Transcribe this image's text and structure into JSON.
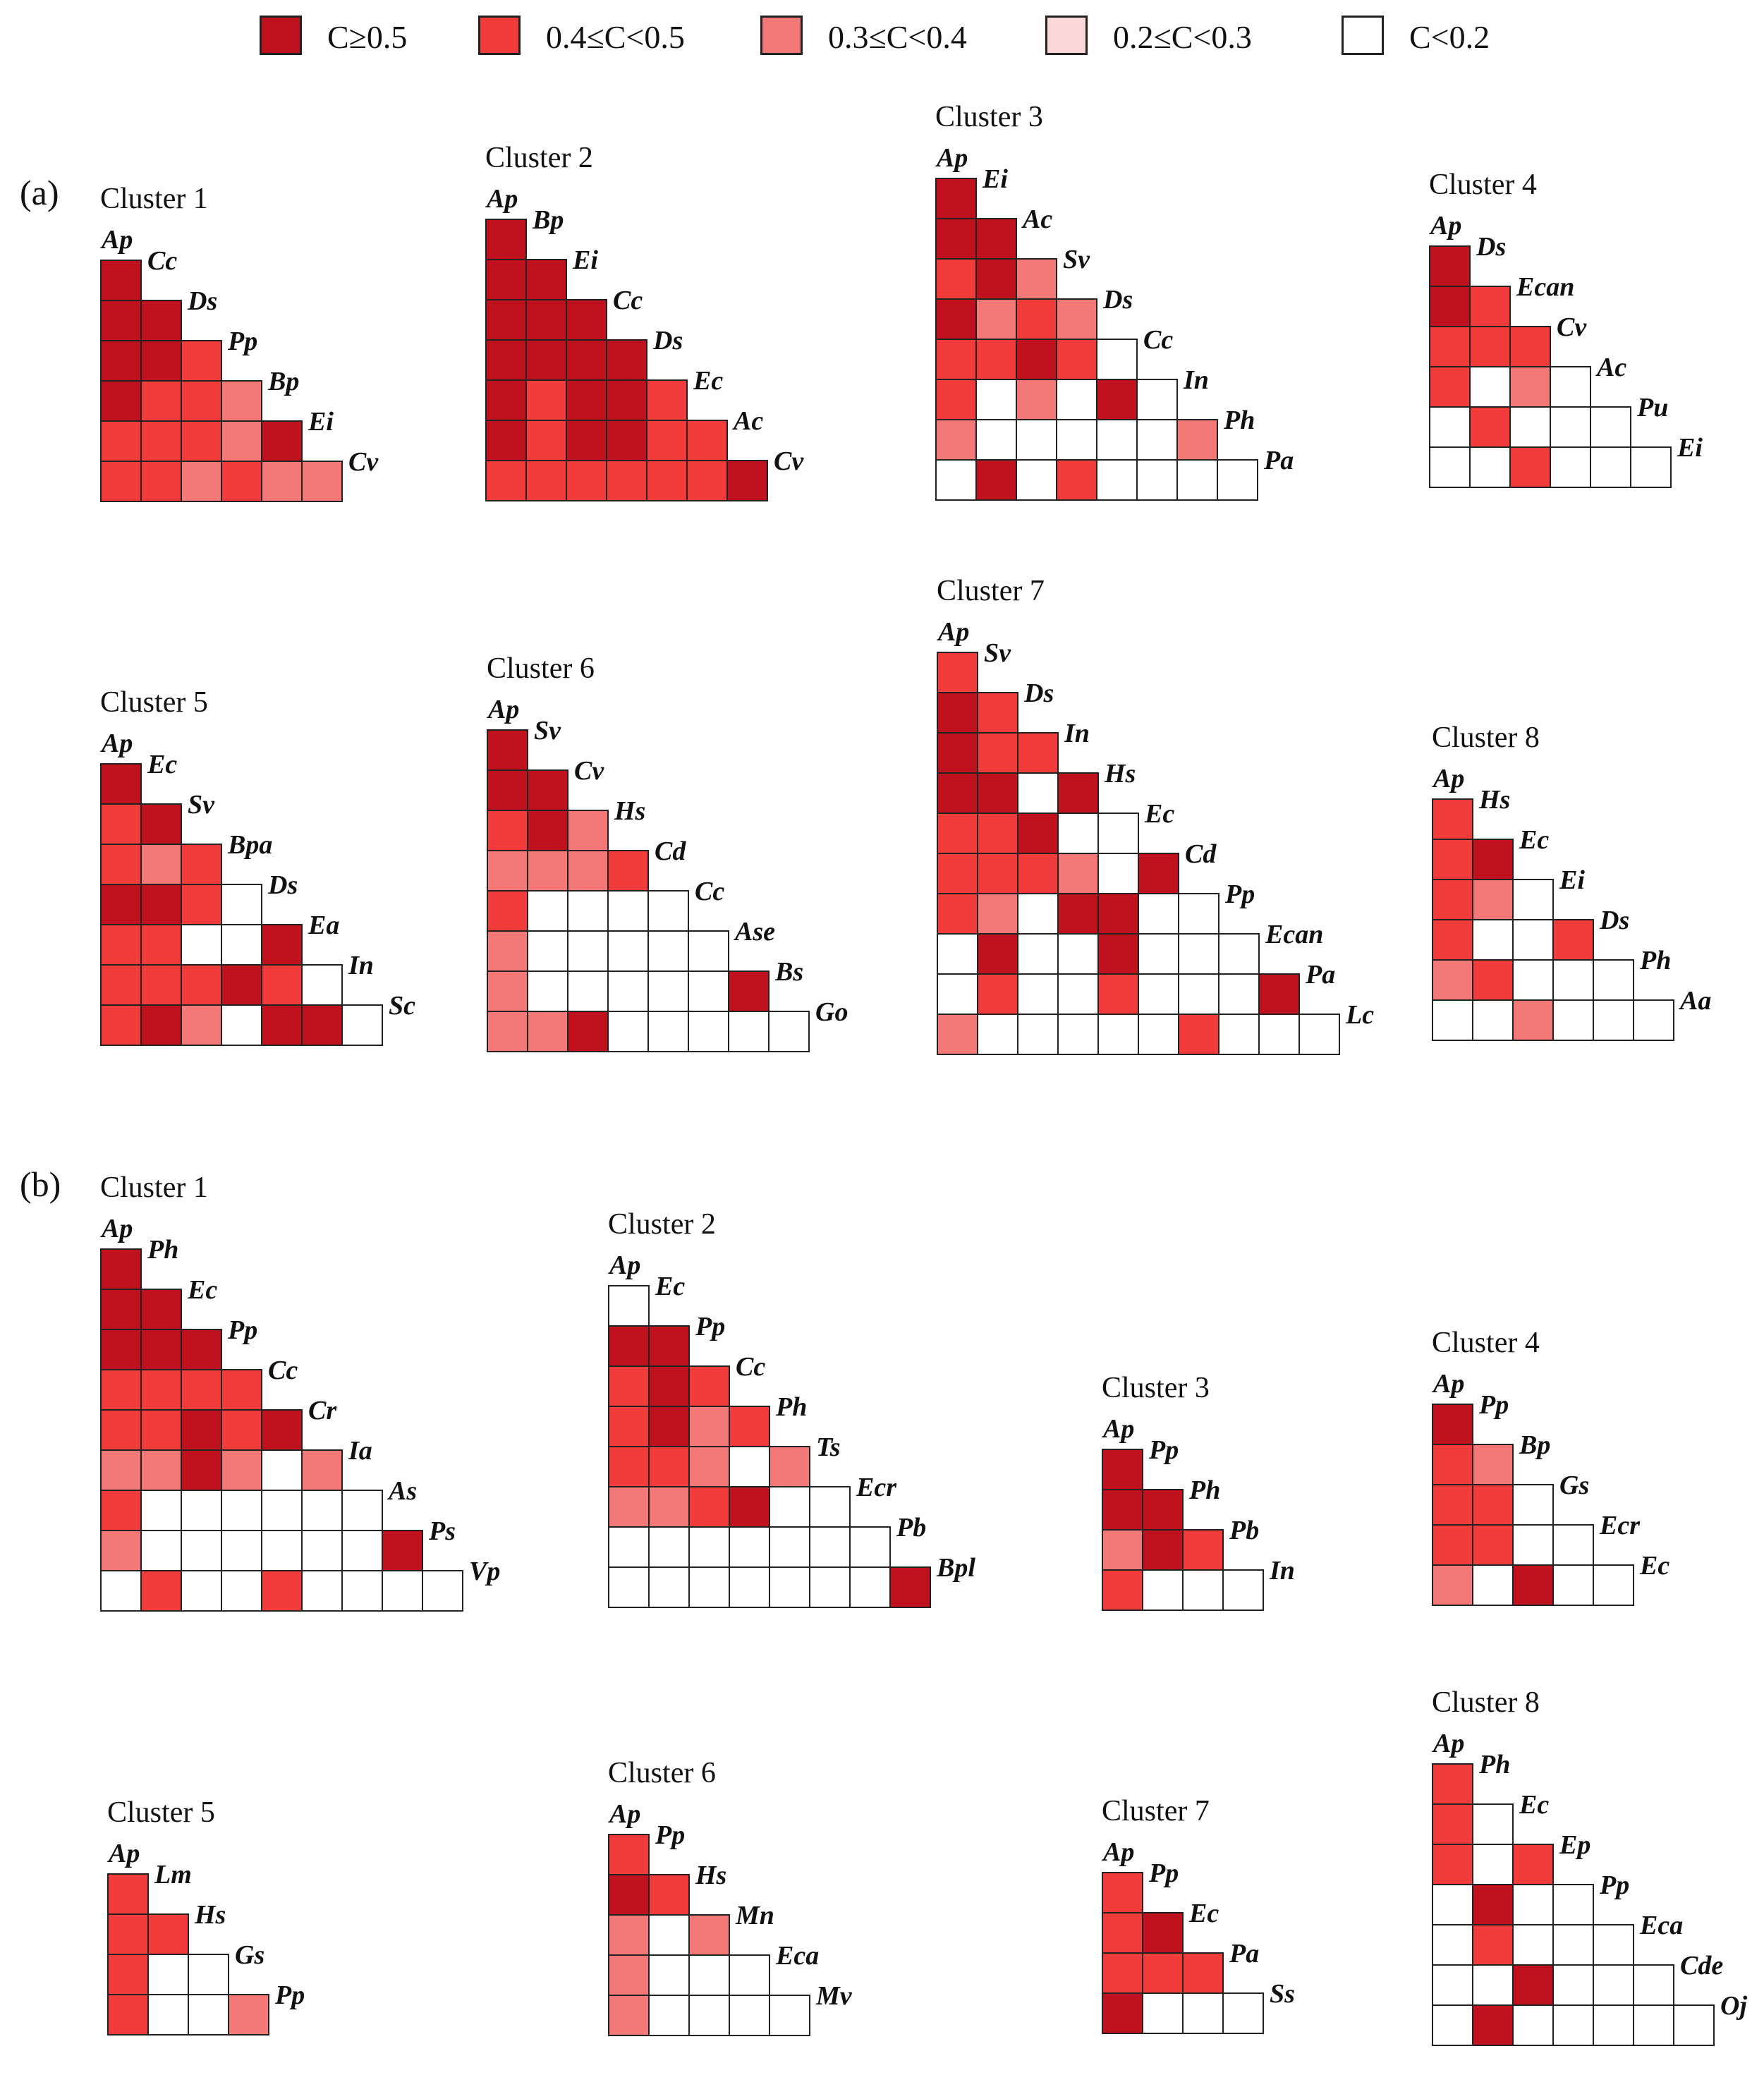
{
  "legend": {
    "items": [
      {
        "label": "C≥0.5",
        "color": "#c0111f"
      },
      {
        "label": "0.4≤C<0.5",
        "color": "#f23b3b"
      },
      {
        "label": "0.3≤C<0.4",
        "color": "#f57878"
      },
      {
        "label": "0.2≤C<0.3",
        "color": "#fcd7d7"
      },
      {
        "label": "C<0.2",
        "color": "#ffffff"
      }
    ]
  },
  "panels": [
    {
      "label": "(a)"
    },
    {
      "label": "(b)"
    }
  ],
  "chart_data": {
    "type": "heatmap",
    "description_levels": [
      "C≥0.5",
      "0.4≤C<0.5",
      "0.3≤C<0.4",
      "0.2≤C<0.3",
      "C<0.2"
    ],
    "level_codes": {
      "0": "C<0.2",
      "1": "0.2≤C<0.3",
      "2": "0.3≤C<0.4",
      "3": "0.4≤C<0.5",
      "4": "C≥0.5"
    },
    "clusters": [
      {
        "panel": "(a)",
        "title": "Cluster 1",
        "species": [
          "Ap",
          "Cc",
          "Ds",
          "Pp",
          "Bp",
          "Ei",
          "Cv"
        ],
        "rows": [
          [
            4
          ],
          [
            4,
            4
          ],
          [
            4,
            4,
            3
          ],
          [
            4,
            3,
            3,
            2
          ],
          [
            3,
            3,
            3,
            2,
            4
          ],
          [
            3,
            3,
            2,
            3,
            2,
            2
          ]
        ]
      },
      {
        "panel": "(a)",
        "title": "Cluster 2",
        "species": [
          "Ap",
          "Bp",
          "Ei",
          "Cc",
          "Ds",
          "Ec",
          "Ac",
          "Cv"
        ],
        "rows": [
          [
            4
          ],
          [
            4,
            4
          ],
          [
            4,
            4,
            4
          ],
          [
            4,
            4,
            4,
            4
          ],
          [
            4,
            3,
            4,
            4,
            3
          ],
          [
            4,
            3,
            4,
            4,
            3,
            3
          ],
          [
            3,
            3,
            3,
            3,
            3,
            3,
            4
          ]
        ]
      },
      {
        "panel": "(a)",
        "title": "Cluster 3",
        "species": [
          "Ap",
          "Ei",
          "Ac",
          "Sv",
          "Ds",
          "Cc",
          "In",
          "Ph",
          "Pa"
        ],
        "rows": [
          [
            4
          ],
          [
            4,
            4
          ],
          [
            3,
            4,
            2
          ],
          [
            4,
            2,
            3,
            2
          ],
          [
            3,
            3,
            4,
            3,
            0
          ],
          [
            3,
            0,
            2,
            0,
            4,
            0
          ],
          [
            2,
            0,
            0,
            0,
            0,
            0,
            2
          ],
          [
            0,
            4,
            0,
            3,
            0,
            0,
            0,
            0
          ]
        ]
      },
      {
        "panel": "(a)",
        "title": "Cluster 4",
        "species": [
          "Ap",
          "Ds",
          "Ecan",
          "Cv",
          "Ac",
          "Pu",
          "Ei"
        ],
        "rows": [
          [
            4
          ],
          [
            4,
            3
          ],
          [
            3,
            3,
            3
          ],
          [
            3,
            0,
            2,
            0
          ],
          [
            0,
            3,
            0,
            0,
            0
          ],
          [
            0,
            0,
            3,
            0,
            0,
            0
          ]
        ]
      },
      {
        "panel": "(a)",
        "title": "Cluster 5",
        "species": [
          "Ap",
          "Ec",
          "Sv",
          "Bpa",
          "Ds",
          "Ea",
          "In",
          "Sc"
        ],
        "rows": [
          [
            4
          ],
          [
            3,
            4
          ],
          [
            3,
            2,
            3
          ],
          [
            4,
            4,
            3,
            0
          ],
          [
            3,
            3,
            0,
            0,
            4
          ],
          [
            3,
            3,
            3,
            4,
            3,
            0
          ],
          [
            3,
            4,
            2,
            0,
            4,
            4,
            0
          ]
        ]
      },
      {
        "panel": "(a)",
        "title": "Cluster 6",
        "species": [
          "Ap",
          "Sv",
          "Cv",
          "Hs",
          "Cd",
          "Cc",
          "Ase",
          "Bs",
          "Go"
        ],
        "rows": [
          [
            4
          ],
          [
            4,
            4
          ],
          [
            3,
            4,
            2
          ],
          [
            2,
            2,
            2,
            3
          ],
          [
            3,
            0,
            0,
            0,
            0
          ],
          [
            2,
            0,
            0,
            0,
            0,
            0
          ],
          [
            2,
            0,
            0,
            0,
            0,
            0,
            4
          ],
          [
            2,
            2,
            4,
            0,
            0,
            0,
            0,
            0
          ]
        ]
      },
      {
        "panel": "(a)",
        "title": "Cluster 7",
        "species": [
          "Ap",
          "Sv",
          "Ds",
          "In",
          "Hs",
          "Ec",
          "Cd",
          "Pp",
          "Ecan",
          "Pa",
          "Lc"
        ],
        "rows": [
          [
            3
          ],
          [
            4,
            3
          ],
          [
            4,
            3,
            3
          ],
          [
            4,
            4,
            0,
            4
          ],
          [
            3,
            3,
            4,
            0,
            0
          ],
          [
            3,
            3,
            3,
            2,
            0,
            4
          ],
          [
            3,
            2,
            0,
            4,
            4,
            0,
            0
          ],
          [
            0,
            4,
            0,
            0,
            4,
            0,
            0,
            0
          ],
          [
            0,
            3,
            0,
            0,
            3,
            0,
            0,
            0,
            4
          ],
          [
            2,
            0,
            0,
            0,
            0,
            0,
            3,
            0,
            0,
            0
          ]
        ]
      },
      {
        "panel": "(a)",
        "title": "Cluster 8",
        "species": [
          "Ap",
          "Hs",
          "Ec",
          "Ei",
          "Ds",
          "Ph",
          "Aa"
        ],
        "rows": [
          [
            3
          ],
          [
            3,
            4
          ],
          [
            3,
            2,
            0
          ],
          [
            3,
            0,
            0,
            3
          ],
          [
            2,
            3,
            0,
            0,
            0
          ],
          [
            0,
            0,
            2,
            0,
            0,
            0
          ]
        ]
      },
      {
        "panel": "(b)",
        "title": "Cluster 1",
        "species": [
          "Ap",
          "Ph",
          "Ec",
          "Pp",
          "Cc",
          "Cr",
          "Ia",
          "As",
          "Ps",
          "Vp"
        ],
        "rows": [
          [
            4
          ],
          [
            4,
            4
          ],
          [
            4,
            4,
            4
          ],
          [
            3,
            3,
            3,
            3
          ],
          [
            3,
            3,
            4,
            3,
            4
          ],
          [
            2,
            2,
            4,
            2,
            0,
            2
          ],
          [
            3,
            0,
            0,
            0,
            0,
            0,
            0
          ],
          [
            2,
            0,
            0,
            0,
            0,
            0,
            0,
            4
          ],
          [
            0,
            3,
            0,
            0,
            3,
            0,
            0,
            0,
            0
          ]
        ]
      },
      {
        "panel": "(b)",
        "title": "Cluster 2",
        "species": [
          "Ap",
          "Ec",
          "Pp",
          "Cc",
          "Ph",
          "Ts",
          "Ecr",
          "Pb",
          "Bpl"
        ],
        "rows": [
          [
            0
          ],
          [
            4,
            4
          ],
          [
            3,
            4,
            3
          ],
          [
            3,
            4,
            2,
            3
          ],
          [
            3,
            3,
            2,
            0,
            2
          ],
          [
            2,
            2,
            3,
            4,
            0,
            0
          ],
          [
            0,
            0,
            0,
            0,
            0,
            0,
            0
          ],
          [
            0,
            0,
            0,
            0,
            0,
            0,
            0,
            4
          ]
        ]
      },
      {
        "panel": "(b)",
        "title": "Cluster 3",
        "species": [
          "Ap",
          "Pp",
          "Ph",
          "Pb",
          "In"
        ],
        "rows": [
          [
            4
          ],
          [
            4,
            4
          ],
          [
            2,
            4,
            3
          ],
          [
            3,
            0,
            0,
            0
          ]
        ]
      },
      {
        "panel": "(b)",
        "title": "Cluster 4",
        "species": [
          "Ap",
          "Pp",
          "Bp",
          "Gs",
          "Ecr",
          "Ec"
        ],
        "rows": [
          [
            4
          ],
          [
            3,
            2
          ],
          [
            3,
            3,
            0
          ],
          [
            3,
            3,
            0,
            0
          ],
          [
            2,
            0,
            4,
            0,
            0
          ]
        ]
      },
      {
        "panel": "(b)",
        "title": "Cluster 5",
        "species": [
          "Ap",
          "Lm",
          "Hs",
          "Gs",
          "Pp"
        ],
        "rows": [
          [
            3
          ],
          [
            3,
            3
          ],
          [
            3,
            0,
            0
          ],
          [
            3,
            0,
            0,
            2
          ]
        ]
      },
      {
        "panel": "(b)",
        "title": "Cluster 6",
        "species": [
          "Ap",
          "Pp",
          "Hs",
          "Mn",
          "Eca",
          "Mv"
        ],
        "rows": [
          [
            3
          ],
          [
            4,
            3
          ],
          [
            2,
            0,
            2
          ],
          [
            2,
            0,
            0,
            0
          ],
          [
            2,
            0,
            0,
            0,
            0
          ]
        ]
      },
      {
        "panel": "(b)",
        "title": "Cluster 7",
        "species": [
          "Ap",
          "Pp",
          "Ec",
          "Pa",
          "Ss"
        ],
        "rows": [
          [
            3
          ],
          [
            3,
            4
          ],
          [
            3,
            3,
            3
          ],
          [
            4,
            0,
            0,
            0
          ]
        ]
      },
      {
        "panel": "(b)",
        "title": "Cluster 8",
        "species": [
          "Ap",
          "Ph",
          "Ec",
          "Ep",
          "Pp",
          "Eca",
          "Cde",
          "Oj"
        ],
        "rows": [
          [
            3
          ],
          [
            3,
            0
          ],
          [
            3,
            0,
            3
          ],
          [
            0,
            4,
            0,
            0
          ],
          [
            0,
            3,
            0,
            0,
            0
          ],
          [
            0,
            0,
            4,
            0,
            0,
            0
          ],
          [
            0,
            4,
            0,
            0,
            0,
            0,
            0
          ]
        ]
      }
    ]
  }
}
